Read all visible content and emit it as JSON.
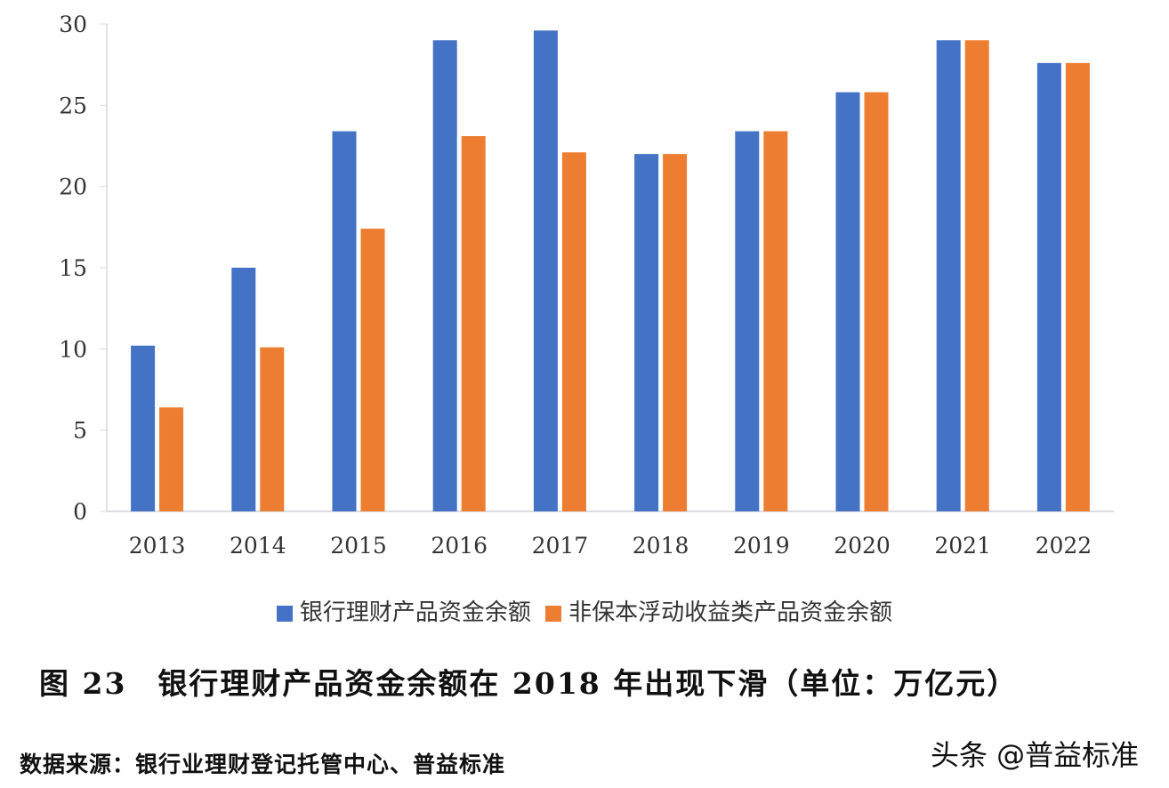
{
  "chart_data": {
    "type": "bar",
    "title": "",
    "xlabel": "",
    "ylabel": "",
    "categories": [
      "2013",
      "2014",
      "2015",
      "2016",
      "2017",
      "2018",
      "2019",
      "2020",
      "2021",
      "2022"
    ],
    "series": [
      {
        "name": "银行理财产品资金余额",
        "color": "#4472C4",
        "values": [
          10.2,
          15.0,
          23.4,
          29.0,
          29.6,
          22.0,
          23.4,
          25.8,
          29.0,
          27.6
        ]
      },
      {
        "name": "非保本浮动收益类产品资金余额",
        "color": "#ED7D31",
        "values": [
          6.4,
          10.1,
          17.4,
          23.1,
          22.1,
          22.0,
          23.4,
          25.8,
          29.0,
          27.6
        ]
      }
    ],
    "ylim": [
      0,
      30
    ],
    "yticks": [
      0,
      5,
      10,
      15,
      20,
      25,
      30
    ],
    "grid": false,
    "legend_position": "bottom"
  },
  "caption": "图 23　银行理财产品资金余额在 2018 年出现下滑（单位：万亿元）",
  "source": "数据来源：银行业理财登记托管中心、普益标准",
  "watermark": "头条 @普益标准"
}
